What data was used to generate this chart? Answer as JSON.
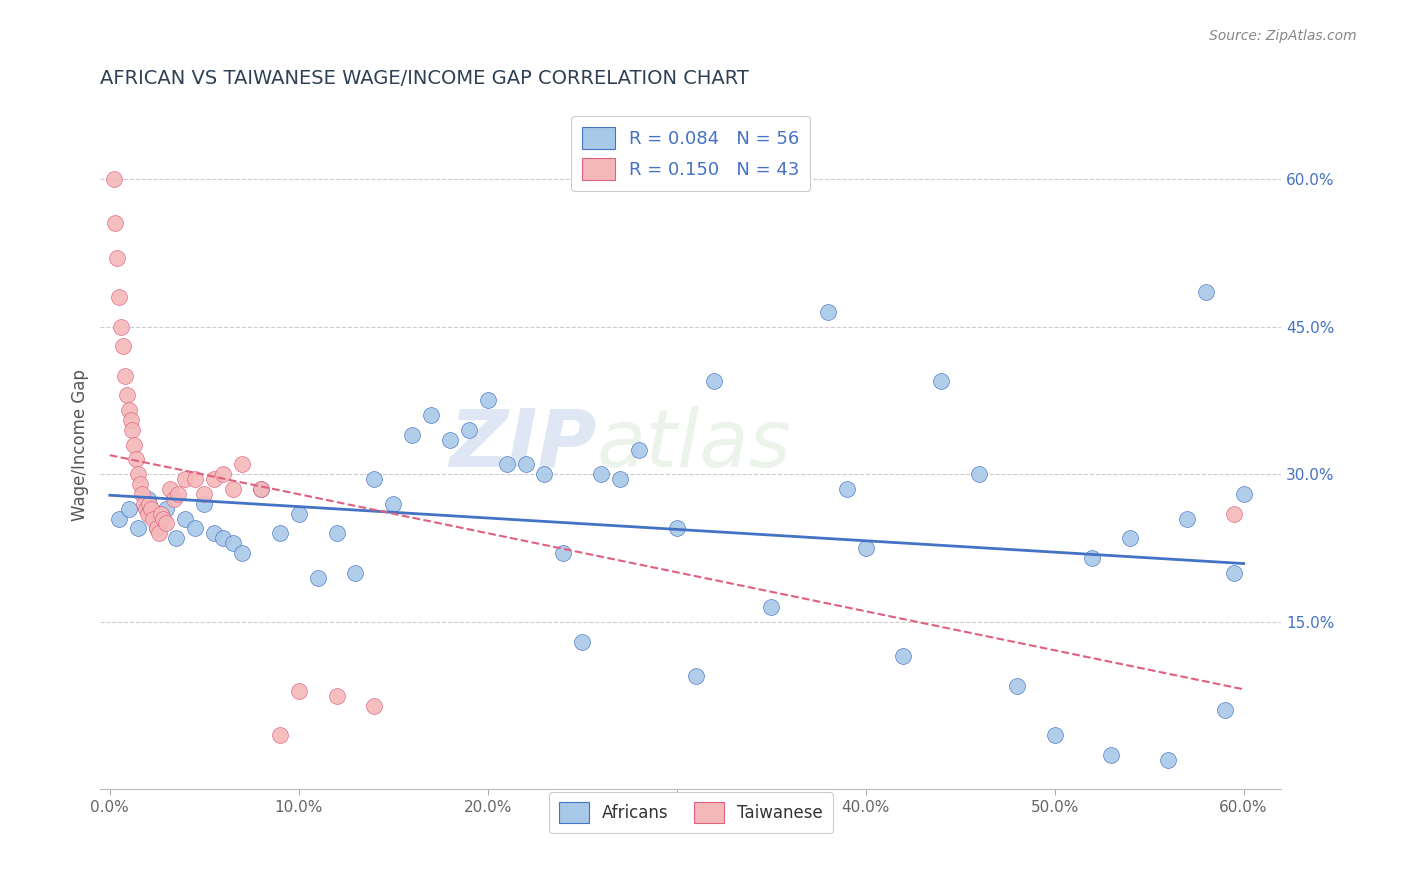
{
  "title": "AFRICAN VS TAIWANESE WAGE/INCOME GAP CORRELATION CHART",
  "source": "Source: ZipAtlas.com",
  "ylabel": "Wage/Income Gap",
  "xlim": [
    -0.005,
    0.62
  ],
  "ylim": [
    -0.02,
    0.68
  ],
  "x_ticks": [
    0.0,
    0.1,
    0.2,
    0.3,
    0.4,
    0.5,
    0.6
  ],
  "x_tick_labels": [
    "0.0%",
    "10.0%",
    "20.0%",
    "30.0%",
    "40.0%",
    "50.0%",
    "60.0%"
  ],
  "y_ticks_right": [
    0.15,
    0.3,
    0.45,
    0.6
  ],
  "y_tick_labels_right": [
    "15.0%",
    "30.0%",
    "45.0%",
    "60.0%"
  ],
  "legend_r1": "R = 0.084",
  "legend_n1": "N = 56",
  "legend_r2": "R = 0.150",
  "legend_n2": "N = 43",
  "blue_color": "#a8c8e8",
  "pink_color": "#f4b8b8",
  "blue_line_color": "#4472c4",
  "pink_line_color": "#e06080",
  "title_color": "#2e4057",
  "watermark_zip": "ZIP",
  "watermark_atlas": "atlas",
  "background_color": "#ffffff",
  "grid_color": "#cccccc",
  "blue_x": [
    0.005,
    0.01,
    0.015,
    0.02,
    0.025,
    0.03,
    0.035,
    0.04,
    0.045,
    0.05,
    0.055,
    0.06,
    0.065,
    0.07,
    0.08,
    0.09,
    0.1,
    0.11,
    0.12,
    0.13,
    0.14,
    0.15,
    0.16,
    0.17,
    0.18,
    0.19,
    0.2,
    0.21,
    0.22,
    0.23,
    0.24,
    0.25,
    0.26,
    0.27,
    0.28,
    0.3,
    0.31,
    0.32,
    0.35,
    0.38,
    0.39,
    0.4,
    0.42,
    0.44,
    0.46,
    0.48,
    0.5,
    0.52,
    0.53,
    0.54,
    0.56,
    0.57,
    0.58,
    0.59,
    0.595,
    0.6
  ],
  "blue_y": [
    0.255,
    0.265,
    0.245,
    0.275,
    0.245,
    0.265,
    0.235,
    0.255,
    0.245,
    0.27,
    0.24,
    0.235,
    0.23,
    0.22,
    0.285,
    0.24,
    0.26,
    0.195,
    0.24,
    0.2,
    0.295,
    0.27,
    0.34,
    0.36,
    0.335,
    0.345,
    0.375,
    0.31,
    0.31,
    0.3,
    0.22,
    0.13,
    0.3,
    0.295,
    0.325,
    0.245,
    0.095,
    0.395,
    0.165,
    0.465,
    0.285,
    0.225,
    0.115,
    0.395,
    0.3,
    0.085,
    0.035,
    0.215,
    0.015,
    0.235,
    0.01,
    0.255,
    0.485,
    0.06,
    0.2,
    0.28
  ],
  "pink_x": [
    0.002,
    0.003,
    0.004,
    0.005,
    0.006,
    0.007,
    0.008,
    0.009,
    0.01,
    0.011,
    0.012,
    0.013,
    0.014,
    0.015,
    0.016,
    0.017,
    0.018,
    0.019,
    0.02,
    0.021,
    0.022,
    0.023,
    0.025,
    0.026,
    0.027,
    0.028,
    0.03,
    0.032,
    0.034,
    0.036,
    0.04,
    0.045,
    0.05,
    0.055,
    0.06,
    0.065,
    0.07,
    0.08,
    0.09,
    0.1,
    0.12,
    0.14,
    0.595
  ],
  "pink_y": [
    0.6,
    0.555,
    0.52,
    0.48,
    0.45,
    0.43,
    0.4,
    0.38,
    0.365,
    0.355,
    0.345,
    0.33,
    0.315,
    0.3,
    0.29,
    0.28,
    0.27,
    0.265,
    0.26,
    0.27,
    0.265,
    0.255,
    0.245,
    0.24,
    0.26,
    0.255,
    0.25,
    0.285,
    0.275,
    0.28,
    0.295,
    0.295,
    0.28,
    0.295,
    0.3,
    0.285,
    0.31,
    0.285,
    0.035,
    0.08,
    0.075,
    0.065,
    0.26
  ]
}
